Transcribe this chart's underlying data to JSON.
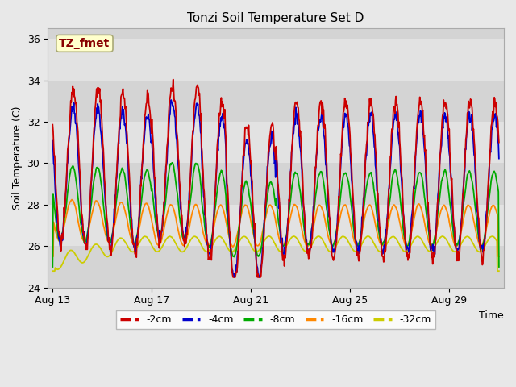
{
  "title": "Tonzi Soil Temperature Set D",
  "xlabel": "Time",
  "ylabel": "Soil Temperature (C)",
  "ylim": [
    24,
    36.5
  ],
  "x_tick_positions": [
    0,
    4,
    8,
    12,
    16
  ],
  "x_tick_labels": [
    "Aug 13",
    "Aug 17",
    "Aug 21",
    "Aug 25",
    "Aug 29"
  ],
  "yticks": [
    24,
    26,
    28,
    30,
    32,
    34,
    36
  ],
  "colors": {
    "-2cm": "#cc0000",
    "-4cm": "#0000cc",
    "-8cm": "#00aa00",
    "-16cm": "#ff8800",
    "-32cm": "#cccc00"
  },
  "annotation_text": "TZ_fmet",
  "annotation_color": "#880000",
  "annotation_bg": "#ffffcc",
  "band_colors": [
    "#cccccc",
    "#dddddd"
  ],
  "fig_facecolor": "#e8e8e8"
}
